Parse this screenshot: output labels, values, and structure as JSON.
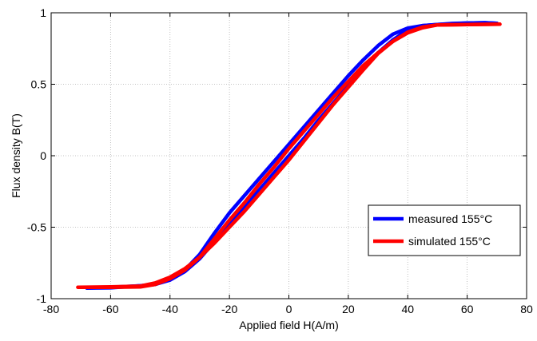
{
  "chart_data": {
    "type": "line",
    "title": "",
    "xlabel": "Applied field H(A/m)",
    "ylabel": "Flux density B(T)",
    "xlim": [
      -80,
      80
    ],
    "ylim": [
      -1,
      1
    ],
    "xticks": [
      -80,
      -60,
      -40,
      -20,
      0,
      20,
      40,
      60,
      80
    ],
    "yticks": [
      -1,
      -0.5,
      0,
      0.5,
      1
    ],
    "xtick_labels": [
      "-80",
      "-60",
      "-40",
      "-20",
      "0",
      "20",
      "40",
      "60",
      "80"
    ],
    "ytick_labels": [
      "-1",
      "-0.5",
      "0",
      "0.5",
      "1"
    ],
    "grid": true,
    "legend_position": "bottom-right",
    "series": [
      {
        "name": "measured 155°C",
        "color": "#0000ff",
        "branches": [
          {
            "x": [
              -68,
              -60,
              -50,
              -45,
              -40,
              -35,
              -30,
              -25,
              -20,
              -15,
              -10,
              -5,
              0,
              5,
              10,
              15,
              20,
              25,
              30,
              35,
              40,
              45,
              50,
              55,
              60,
              66,
              70
            ],
            "y": [
              -0.925,
              -0.924,
              -0.91,
              -0.9,
              -0.86,
              -0.8,
              -0.69,
              -0.54,
              -0.4,
              -0.28,
              -0.16,
              -0.04,
              0.08,
              0.2,
              0.32,
              0.44,
              0.56,
              0.67,
              0.77,
              0.85,
              0.893,
              0.91,
              0.918,
              0.925,
              0.928,
              0.93,
              0.926
            ]
          },
          {
            "x": [
              70,
              66,
              60,
              50,
              45,
              40,
              35,
              30,
              25,
              20,
              15,
              10,
              5,
              0,
              -5,
              -10,
              -15,
              -20,
              -25,
              -30,
              -35,
              -40,
              -45,
              -50,
              -60,
              -68
            ],
            "y": [
              0.926,
              0.93,
              0.928,
              0.918,
              0.91,
              0.88,
              0.81,
              0.72,
              0.61,
              0.49,
              0.37,
              0.25,
              0.12,
              0.0,
              -0.12,
              -0.24,
              -0.36,
              -0.48,
              -0.6,
              -0.72,
              -0.81,
              -0.87,
              -0.9,
              -0.91,
              -0.92,
              -0.925
            ]
          }
        ]
      },
      {
        "name": "simulated 155°C",
        "color": "#ff0000",
        "branches": [
          {
            "x": [
              -71,
              -60,
              -50,
              -45,
              -40,
              -35,
              -30,
              -25,
              -20,
              -15,
              -10,
              -5,
              0,
              5,
              10,
              15,
              20,
              25,
              30,
              35,
              40,
              45,
              50,
              60,
              71
            ],
            "y": [
              -0.92,
              -0.92,
              -0.918,
              -0.9,
              -0.86,
              -0.8,
              -0.71,
              -0.58,
              -0.45,
              -0.33,
              -0.2,
              -0.08,
              0.05,
              0.17,
              0.29,
              0.41,
              0.52,
              0.63,
              0.72,
              0.8,
              0.86,
              0.895,
              0.915,
              0.918,
              0.92
            ]
          },
          {
            "x": [
              71,
              60,
              50,
              45,
              40,
              35,
              30,
              25,
              20,
              15,
              10,
              5,
              0,
              -5,
              -10,
              -15,
              -20,
              -25,
              -30,
              -35,
              -40,
              -45,
              -50,
              -60,
              -71
            ],
            "y": [
              0.92,
              0.918,
              0.915,
              0.9,
              0.865,
              0.8,
              0.715,
              0.6,
              0.48,
              0.36,
              0.23,
              0.1,
              -0.03,
              -0.15,
              -0.27,
              -0.39,
              -0.5,
              -0.61,
              -0.71,
              -0.79,
              -0.85,
              -0.89,
              -0.912,
              -0.918,
              -0.92
            ]
          }
        ]
      }
    ]
  }
}
